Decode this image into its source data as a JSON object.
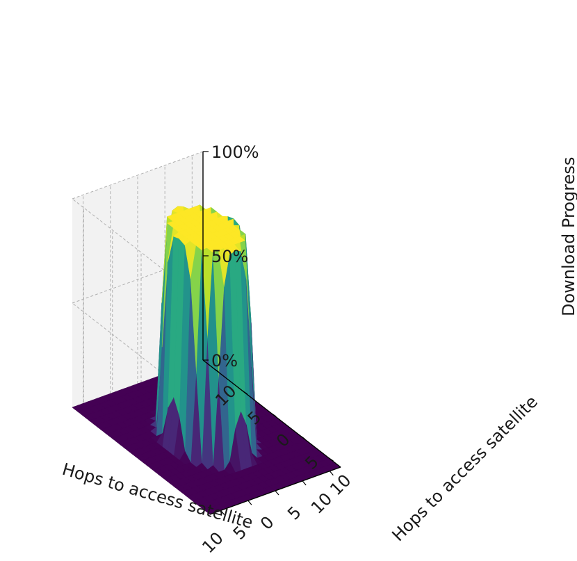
{
  "chart_data": {
    "type": "surface",
    "title": "",
    "xlabel": "Hops to access satellite",
    "ylabel": "Hops to access satellite",
    "zlabel": "Download Progress",
    "x_ticks": [
      "10",
      "5",
      "0",
      "5",
      "10"
    ],
    "y_ticks": [
      "10",
      "5",
      "0",
      "5",
      "10"
    ],
    "z_ticks": [
      "0%",
      "50%",
      "100%"
    ],
    "xlim": [
      -12,
      12
    ],
    "ylim": [
      -12,
      12
    ],
    "zlim": [
      0,
      100
    ],
    "grid": true,
    "colormap": "viridis",
    "surface_description": {
      "center": [
        0,
        0
      ],
      "plateau_radius_hops": 5,
      "edge_radius_hops": 6.5,
      "plateau_value": 100,
      "outside_value": 0
    }
  },
  "colors": {
    "pane_left": "#ececec",
    "pane_back": "#f2f2f2",
    "pane_floor": "#f6f6f6",
    "grid": "#b0b0b0",
    "axis": "#000000"
  }
}
